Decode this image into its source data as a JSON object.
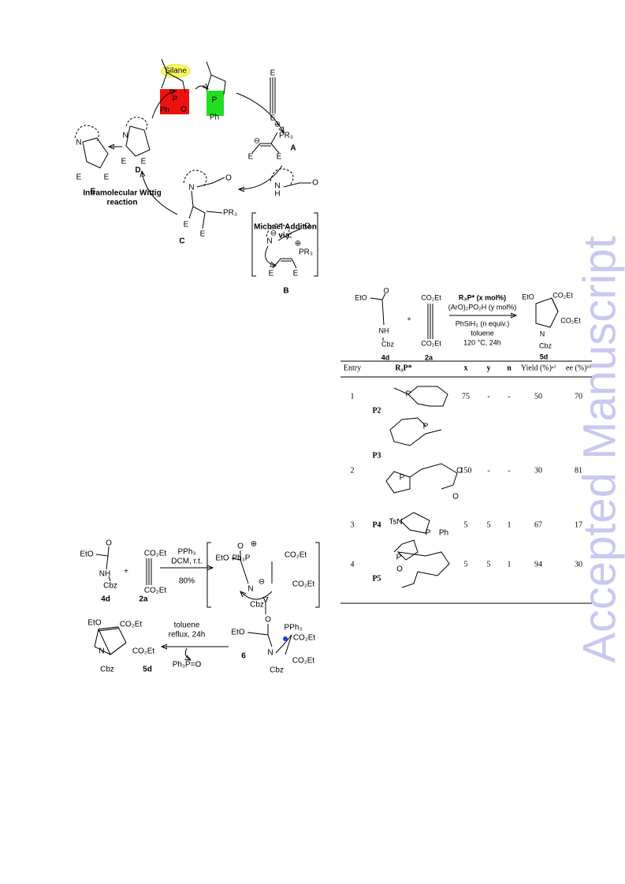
{
  "watermark": "Accepted Manuscript",
  "cycle": {
    "labels": [
      "Silane",
      "P",
      "O",
      "Ph",
      "P",
      "Ph",
      "E",
      "E",
      "⊕",
      "PR₃",
      "⊖",
      "E",
      "E",
      "A",
      "N",
      "E",
      "E",
      "D",
      "N",
      "E",
      "E",
      "E",
      "Intramolecular Wittig",
      "reaction",
      "N",
      "O",
      "E",
      "E",
      "PR₃",
      "C",
      "N",
      "H",
      "O",
      "Michael Addition",
      "via:",
      "⊖",
      "N",
      "O",
      "⊕",
      "PR₃",
      "E",
      "E",
      "B"
    ]
  },
  "reaction": {
    "labels": [
      "EtO",
      "O",
      "NH",
      "Cbz",
      "4d",
      "+",
      "CO₂Et",
      "CO₂Et",
      "2a",
      "R₃P* (x mol%)",
      "(ArO)₂PO₂H (y mol%)",
      "PhSiH₃ (n equiv.)",
      "toluene",
      "120 °C, 24h",
      "EtO",
      "CO₂Et",
      "CO₂Et",
      "N",
      "Cbz",
      "5d"
    ]
  },
  "table": {
    "header": [
      "Entry",
      "R₃P*",
      "x",
      "y",
      "n",
      "Yield (%)ᵃ⁾",
      "ee (%)ᵇ⁾"
    ],
    "rows": [
      [
        1,
        "P2",
        75,
        "-",
        "-",
        50,
        70
      ],
      [
        2,
        "P3",
        150,
        "-",
        "-",
        30,
        81
      ],
      [
        3,
        "P4",
        5,
        5,
        1,
        67,
        17
      ],
      [
        4,
        "P5",
        5,
        5,
        1,
        94,
        30
      ]
    ],
    "structure_labels": [
      "P",
      "P",
      "P",
      "O",
      "O",
      "TsN",
      "P",
      "Ph",
      "P",
      "O"
    ]
  },
  "scheme": {
    "labels": [
      "EtO",
      "O",
      "NH",
      "Cbz",
      "4d",
      "+",
      "CO₂Et",
      "CO₂Et",
      "2a",
      "PPh₃",
      "DCM, r.t.",
      "80%",
      "EtO",
      "O",
      "⊕",
      "Ph₃P",
      "CO₂Et",
      "N",
      "⊖",
      "Cbz",
      "CO₂Et",
      "EtO",
      "O",
      "PPh₃",
      "CO₂Et",
      "N",
      "CO₂Et",
      "Cbz",
      "6",
      "toluene",
      "reflux, 24h",
      "Ph₃P=O",
      "EtO",
      "CO₂Et",
      "N",
      "CO₂Et",
      "Cbz",
      "5d"
    ]
  }
}
